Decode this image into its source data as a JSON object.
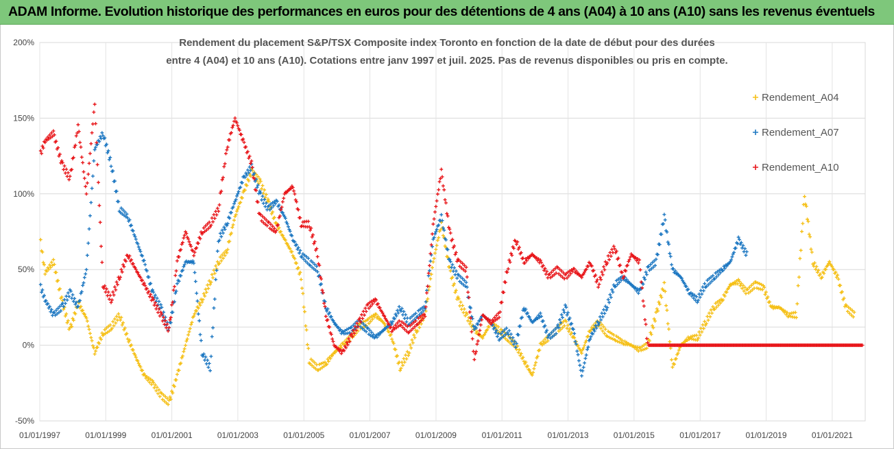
{
  "banner": {
    "title": "ADAM Informe. Evolution historique des performances en euros pour des détentions de 4 ans (A04) à 10 ans (A10) sans les revenus éventuels"
  },
  "chart_data": {
    "type": "scatter",
    "title_lines": [
      "Rendement du placement S&P/TSX Composite index Toronto en fonction de la date de début pour des durées",
      "entre 4 (A04) et 10 ans (A10). Cotations entre janv 1997 et juil. 2025. Pas de revenus disponibles ou pris en compte."
    ],
    "x_axis": {
      "type": "date",
      "range": [
        "1997-01-01",
        "2022-01-01"
      ],
      "ticks": [
        "01/01/1997",
        "01/01/1999",
        "01/01/2001",
        "01/01/2003",
        "01/01/2005",
        "01/01/2007",
        "01/01/2009",
        "01/01/2011",
        "01/01/2013",
        "01/01/2015",
        "01/01/2017",
        "01/01/2019",
        "01/01/2021"
      ]
    },
    "y_axis": {
      "range": [
        -50,
        200
      ],
      "ticks": [
        -50,
        0,
        50,
        100,
        150,
        200
      ],
      "tick_labels": [
        "-50%",
        "0%",
        "50%",
        "100%",
        "150%",
        "200%"
      ]
    },
    "grid": true,
    "legend_position": "right",
    "series": [
      {
        "name": "Rendement_A04",
        "color": "#f5c018",
        "points": [
          [
            "1997-01-01",
            72
          ],
          [
            "1997-03-01",
            48
          ],
          [
            "1997-06-01",
            55
          ],
          [
            "1997-09-01",
            30
          ],
          [
            "1997-12-01",
            10
          ],
          [
            "1998-03-01",
            28
          ],
          [
            "1998-06-01",
            18
          ],
          [
            "1998-09-01",
            -5
          ],
          [
            "1998-12-01",
            8
          ],
          [
            "1999-03-01",
            12
          ],
          [
            "1999-06-01",
            20
          ],
          [
            "1999-09-01",
            5
          ],
          [
            "1999-12-01",
            -8
          ],
          [
            "2000-03-01",
            -20
          ],
          [
            "2000-06-01",
            -25
          ],
          [
            "2000-09-01",
            -33
          ],
          [
            "2000-12-01",
            -38
          ],
          [
            "2001-03-01",
            -20
          ],
          [
            "2001-06-01",
            0
          ],
          [
            "2001-09-01",
            20
          ],
          [
            "2001-12-01",
            30
          ],
          [
            "2002-03-01",
            42
          ],
          [
            "2002-06-01",
            55
          ],
          [
            "2002-09-01",
            62
          ],
          [
            "2002-12-01",
            85
          ],
          [
            "2003-03-01",
            100
          ],
          [
            "2003-06-01",
            115
          ],
          [
            "2003-09-01",
            108
          ],
          [
            "2003-12-01",
            95
          ],
          [
            "2004-03-01",
            80
          ],
          [
            "2004-06-01",
            70
          ],
          [
            "2004-09-01",
            60
          ],
          [
            "2004-12-01",
            45
          ],
          [
            "2005-03-01",
            -10
          ],
          [
            "2005-06-01",
            -15
          ],
          [
            "2005-09-01",
            -12
          ],
          [
            "2005-12-01",
            -5
          ],
          [
            "2006-03-01",
            0
          ],
          [
            "2006-06-01",
            5
          ],
          [
            "2006-09-01",
            12
          ],
          [
            "2006-12-01",
            15
          ],
          [
            "2007-03-01",
            20
          ],
          [
            "2007-06-01",
            15
          ],
          [
            "2007-09-01",
            5
          ],
          [
            "2007-12-01",
            -15
          ],
          [
            "2008-03-01",
            -5
          ],
          [
            "2008-06-01",
            10
          ],
          [
            "2008-09-01",
            20
          ],
          [
            "2008-12-01",
            55
          ],
          [
            "2009-03-01",
            80
          ],
          [
            "2009-06-01",
            50
          ],
          [
            "2009-09-01",
            30
          ],
          [
            "2009-12-01",
            20
          ],
          [
            "2010-03-01",
            10
          ],
          [
            "2010-06-01",
            5
          ],
          [
            "2010-09-01",
            15
          ],
          [
            "2010-12-01",
            10
          ],
          [
            "2011-03-01",
            5
          ],
          [
            "2011-06-01",
            0
          ],
          [
            "2011-09-01",
            -10
          ],
          [
            "2011-12-01",
            -20
          ],
          [
            "2012-03-01",
            0
          ],
          [
            "2012-06-01",
            5
          ],
          [
            "2012-09-01",
            10
          ],
          [
            "2012-12-01",
            15
          ],
          [
            "2013-03-01",
            5
          ],
          [
            "2013-06-01",
            -5
          ],
          [
            "2013-09-01",
            10
          ],
          [
            "2013-12-01",
            15
          ],
          [
            "2014-03-01",
            8
          ],
          [
            "2014-06-01",
            5
          ],
          [
            "2014-09-01",
            2
          ],
          [
            "2014-12-01",
            0
          ],
          [
            "2015-03-01",
            -3
          ],
          [
            "2015-06-01",
            0
          ],
          [
            "2015-09-01",
            20
          ],
          [
            "2015-12-01",
            40
          ],
          [
            "2016-03-01",
            -15
          ],
          [
            "2016-06-01",
            0
          ],
          [
            "2016-09-01",
            5
          ],
          [
            "2016-12-01",
            5
          ],
          [
            "2017-03-01",
            15
          ],
          [
            "2017-06-01",
            25
          ],
          [
            "2017-09-01",
            30
          ],
          [
            "2017-12-01",
            40
          ],
          [
            "2018-03-01",
            42
          ],
          [
            "2018-06-01",
            35
          ],
          [
            "2018-09-01",
            40
          ],
          [
            "2018-12-01",
            38
          ],
          [
            "2019-03-01",
            25
          ],
          [
            "2019-06-01",
            25
          ],
          [
            "2019-09-01",
            20
          ],
          [
            "2019-12-01",
            20
          ],
          [
            "2020-03-01",
            100
          ],
          [
            "2020-06-01",
            55
          ],
          [
            "2020-09-01",
            45
          ],
          [
            "2020-12-01",
            55
          ],
          [
            "2021-03-01",
            45
          ],
          [
            "2021-06-01",
            25
          ],
          [
            "2021-09-01",
            20
          ]
        ]
      },
      {
        "name": "Rendement_A07",
        "color": "#1e78c2",
        "points": [
          [
            "1997-01-01",
            40
          ],
          [
            "1997-03-01",
            30
          ],
          [
            "1997-06-01",
            20
          ],
          [
            "1997-09-01",
            25
          ],
          [
            "1997-12-01",
            35
          ],
          [
            "1998-03-01",
            25
          ],
          [
            "1998-06-01",
            50
          ],
          [
            "1998-09-01",
            130
          ],
          [
            "1998-12-01",
            140
          ],
          [
            "1999-03-01",
            120
          ],
          [
            "1999-06-01",
            90
          ],
          [
            "1999-09-01",
            85
          ],
          [
            "1999-12-01",
            70
          ],
          [
            "2000-03-01",
            55
          ],
          [
            "2000-06-01",
            35
          ],
          [
            "2000-09-01",
            25
          ],
          [
            "2000-12-01",
            10
          ],
          [
            "2001-03-01",
            40
          ],
          [
            "2001-06-01",
            55
          ],
          [
            "2001-09-01",
            55
          ],
          [
            "2001-12-01",
            -5
          ],
          [
            "2002-03-01",
            -15
          ],
          [
            "2002-06-01",
            70
          ],
          [
            "2002-09-01",
            80
          ],
          [
            "2002-12-01",
            95
          ],
          [
            "2003-03-01",
            110
          ],
          [
            "2003-06-01",
            118
          ],
          [
            "2003-09-01",
            100
          ],
          [
            "2003-12-01",
            90
          ],
          [
            "2004-03-01",
            95
          ],
          [
            "2004-06-01",
            85
          ],
          [
            "2004-09-01",
            70
          ],
          [
            "2004-12-01",
            60
          ],
          [
            "2005-03-01",
            55
          ],
          [
            "2005-06-01",
            50
          ],
          [
            "2005-09-01",
            25
          ],
          [
            "2005-12-01",
            15
          ],
          [
            "2006-03-01",
            8
          ],
          [
            "2006-06-01",
            10
          ],
          [
            "2006-09-01",
            15
          ],
          [
            "2006-12-01",
            10
          ],
          [
            "2007-03-01",
            5
          ],
          [
            "2007-06-01",
            10
          ],
          [
            "2007-09-01",
            15
          ],
          [
            "2007-12-01",
            25
          ],
          [
            "2008-03-01",
            15
          ],
          [
            "2008-06-01",
            20
          ],
          [
            "2008-09-01",
            25
          ],
          [
            "2008-12-01",
            70
          ],
          [
            "2009-03-01",
            85
          ],
          [
            "2009-06-01",
            55
          ],
          [
            "2009-09-01",
            45
          ],
          [
            "2009-12-01",
            40
          ],
          [
            "2010-03-01",
            10
          ],
          [
            "2010-06-01",
            20
          ],
          [
            "2010-09-01",
            15
          ],
          [
            "2010-12-01",
            5
          ],
          [
            "2011-03-01",
            10
          ],
          [
            "2011-06-01",
            0
          ],
          [
            "2011-09-01",
            25
          ],
          [
            "2011-12-01",
            15
          ],
          [
            "2012-03-01",
            20
          ],
          [
            "2012-06-01",
            5
          ],
          [
            "2012-09-01",
            10
          ],
          [
            "2012-12-01",
            25
          ],
          [
            "2013-03-01",
            10
          ],
          [
            "2013-06-01",
            -20
          ],
          [
            "2013-09-01",
            5
          ],
          [
            "2013-12-01",
            15
          ],
          [
            "2014-03-01",
            25
          ],
          [
            "2014-06-01",
            40
          ],
          [
            "2014-09-01",
            45
          ],
          [
            "2014-12-01",
            40
          ],
          [
            "2015-03-01",
            35
          ],
          [
            "2015-06-01",
            50
          ],
          [
            "2015-09-01",
            55
          ],
          [
            "2015-12-01",
            85
          ],
          [
            "2016-03-01",
            50
          ],
          [
            "2016-06-01",
            45
          ],
          [
            "2016-09-01",
            35
          ],
          [
            "2016-12-01",
            30
          ],
          [
            "2017-03-01",
            40
          ],
          [
            "2017-06-01",
            45
          ],
          [
            "2017-09-01",
            50
          ],
          [
            "2017-12-01",
            55
          ],
          [
            "2018-03-01",
            70
          ],
          [
            "2018-06-01",
            60
          ]
        ]
      },
      {
        "name": "Rendement_A10",
        "color": "#e8171b",
        "points": [
          [
            "1997-01-01",
            125
          ],
          [
            "1997-03-01",
            135
          ],
          [
            "1997-06-01",
            140
          ],
          [
            "1997-09-01",
            120
          ],
          [
            "1997-12-01",
            110
          ],
          [
            "1998-03-01",
            145
          ],
          [
            "1998-06-01",
            100
          ],
          [
            "1998-09-01",
            160
          ],
          [
            "1998-12-01",
            40
          ],
          [
            "1999-03-01",
            30
          ],
          [
            "1999-06-01",
            45
          ],
          [
            "1999-09-01",
            60
          ],
          [
            "1999-12-01",
            50
          ],
          [
            "2000-03-01",
            40
          ],
          [
            "2000-06-01",
            30
          ],
          [
            "2000-09-01",
            20
          ],
          [
            "2000-12-01",
            10
          ],
          [
            "2001-03-01",
            55
          ],
          [
            "2001-06-01",
            75
          ],
          [
            "2001-09-01",
            60
          ],
          [
            "2001-12-01",
            75
          ],
          [
            "2002-03-01",
            80
          ],
          [
            "2002-06-01",
            90
          ],
          [
            "2002-09-01",
            130
          ],
          [
            "2002-12-01",
            150
          ],
          [
            "2003-03-01",
            135
          ],
          [
            "2003-06-01",
            120
          ],
          [
            "2003-09-01",
            85
          ],
          [
            "2003-12-01",
            80
          ],
          [
            "2004-03-01",
            75
          ],
          [
            "2004-06-01",
            100
          ],
          [
            "2004-09-01",
            105
          ],
          [
            "2004-12-01",
            80
          ],
          [
            "2005-03-01",
            80
          ],
          [
            "2005-06-01",
            60
          ],
          [
            "2005-09-01",
            20
          ],
          [
            "2005-12-01",
            0
          ],
          [
            "2006-03-01",
            -5
          ],
          [
            "2006-06-01",
            5
          ],
          [
            "2006-09-01",
            15
          ],
          [
            "2006-12-01",
            25
          ],
          [
            "2007-03-01",
            30
          ],
          [
            "2007-06-01",
            20
          ],
          [
            "2007-09-01",
            10
          ],
          [
            "2007-12-01",
            15
          ],
          [
            "2008-03-01",
            10
          ],
          [
            "2008-06-01",
            15
          ],
          [
            "2008-09-01",
            20
          ],
          [
            "2008-12-01",
            80
          ],
          [
            "2009-03-01",
            115
          ],
          [
            "2009-06-01",
            75
          ],
          [
            "2009-09-01",
            55
          ],
          [
            "2009-12-01",
            50
          ],
          [
            "2010-03-01",
            -10
          ],
          [
            "2010-06-01",
            20
          ],
          [
            "2010-09-01",
            15
          ],
          [
            "2010-12-01",
            20
          ],
          [
            "2011-03-01",
            50
          ],
          [
            "2011-06-01",
            70
          ],
          [
            "2011-09-01",
            55
          ],
          [
            "2011-12-01",
            60
          ],
          [
            "2012-03-01",
            55
          ],
          [
            "2012-06-01",
            45
          ],
          [
            "2012-09-01",
            50
          ],
          [
            "2012-12-01",
            45
          ],
          [
            "2013-03-01",
            50
          ],
          [
            "2013-06-01",
            45
          ],
          [
            "2013-09-01",
            55
          ],
          [
            "2013-12-01",
            40
          ],
          [
            "2014-03-01",
            55
          ],
          [
            "2014-06-01",
            65
          ],
          [
            "2014-09-01",
            45
          ],
          [
            "2014-12-01",
            60
          ],
          [
            "2015-03-01",
            55
          ],
          [
            "2015-06-01",
            0
          ],
          [
            "2016-01-01",
            0
          ],
          [
            "2017-01-01",
            0
          ],
          [
            "2018-01-01",
            0
          ],
          [
            "2019-01-01",
            0
          ],
          [
            "2020-01-01",
            0
          ],
          [
            "2021-01-01",
            0
          ],
          [
            "2021-12-01",
            0
          ]
        ]
      }
    ]
  }
}
